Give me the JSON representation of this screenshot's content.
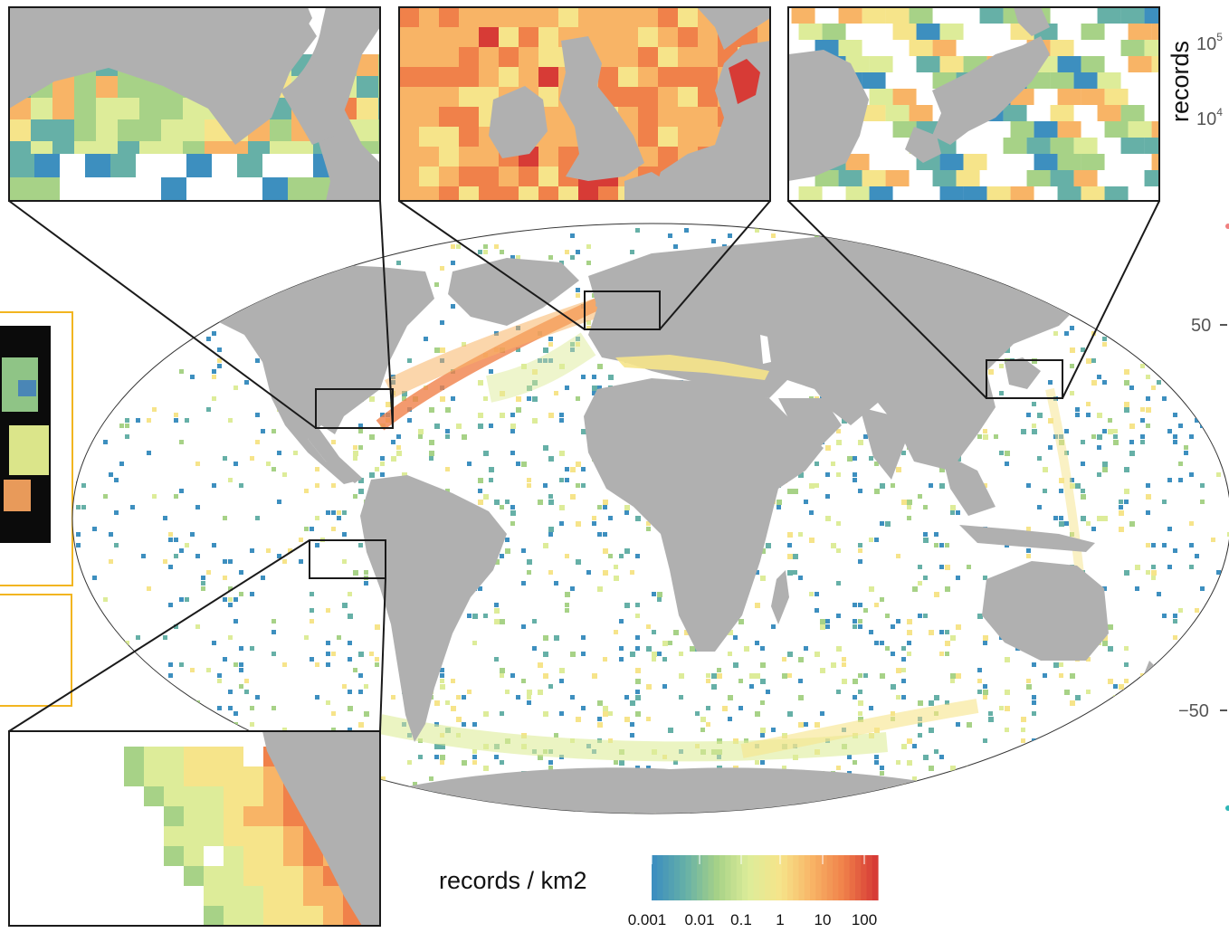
{
  "colors": {
    "land": "#b0b0b0",
    "ocean_empty": "#ffffff",
    "scale": [
      "#3d8fbf",
      "#66b0a7",
      "#a7d287",
      "#ddec99",
      "#f6e48a",
      "#f8b466",
      "#f0814a",
      "#d73b36"
    ],
    "frame": "#2b2b2b",
    "inset_border_left": "#f2b520"
  },
  "legend": {
    "title": "records / km2",
    "ticks": [
      "0.001",
      "0.01",
      "0.1",
      "1",
      "10",
      "100"
    ]
  },
  "side_axis": {
    "label": "records",
    "top_ticks": [
      {
        "base": "10",
        "exp": "5"
      },
      {
        "base": "10",
        "exp": "4"
      }
    ],
    "lat_ticks": [
      "50",
      "−50"
    ]
  },
  "insets": [
    {
      "name": "gulf-of-mexico"
    },
    {
      "name": "north-sea"
    },
    {
      "name": "japan"
    },
    {
      "name": "peru-coast"
    }
  ]
}
